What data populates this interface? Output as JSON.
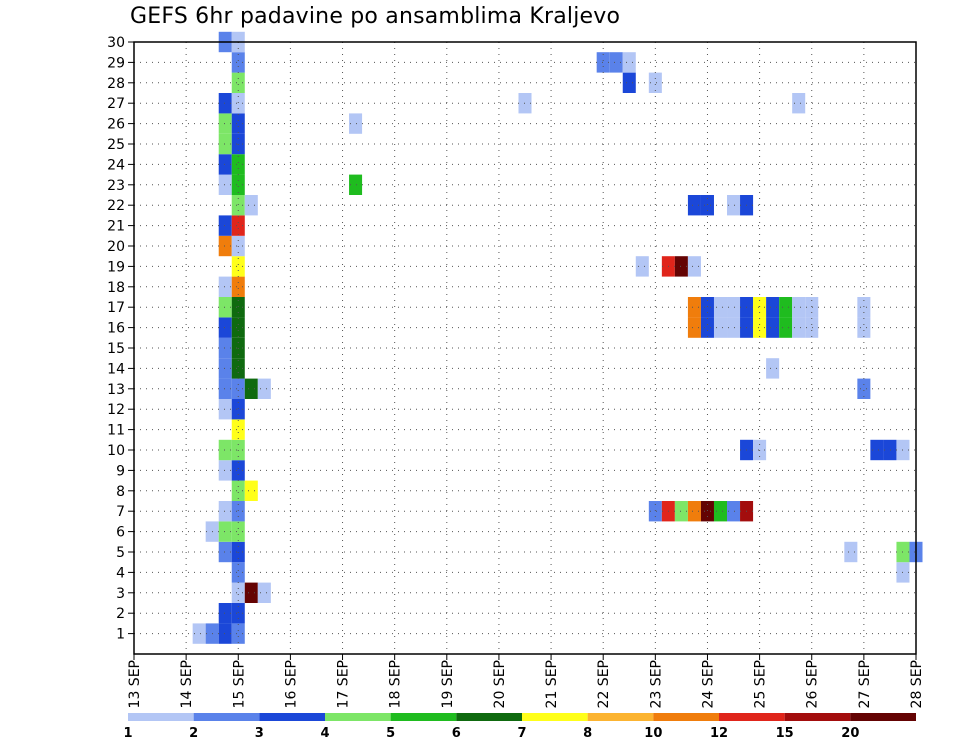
{
  "chart_data": {
    "type": "heatmap",
    "title": "GEFS 6hr padavine po ansamblima Kraljevo",
    "xlabel": "",
    "ylabel": "",
    "x_ticks": [
      "13 SEP",
      "14 SEP",
      "15 SEP",
      "16 SEP",
      "17 SEP",
      "18 SEP",
      "19 SEP",
      "20 SEP",
      "21 SEP",
      "22 SEP",
      "23 SEP",
      "24 SEP",
      "25 SEP",
      "26 SEP",
      "27 SEP",
      "28 SEP"
    ],
    "x_range_steps": [
      0,
      60
    ],
    "steps_per_day": 4,
    "y_ticks": [
      1,
      2,
      3,
      4,
      5,
      6,
      7,
      8,
      9,
      10,
      11,
      12,
      13,
      14,
      15,
      16,
      17,
      18,
      19,
      20,
      21,
      22,
      23,
      24,
      25,
      26,
      27,
      28,
      29,
      30
    ],
    "y_range": [
      0,
      30
    ],
    "grid": true,
    "colorbar": {
      "labels": [
        "1",
        "2",
        "3",
        "4",
        "5",
        "6",
        "7",
        "8",
        "10",
        "12",
        "15",
        "20"
      ],
      "colors": [
        "#b3c6f5",
        "#5a82ea",
        "#1b47d8",
        "#7de667",
        "#1fbc1f",
        "#0f6a0f",
        "#ffff1a",
        "#fcb431",
        "#f07d0c",
        "#e0251b",
        "#a30d0d",
        "#640303"
      ]
    },
    "cells": [
      {
        "member": 1,
        "step": 5,
        "value": 1
      },
      {
        "member": 1,
        "step": 6,
        "value": 2
      },
      {
        "member": 1,
        "step": 7,
        "value": 3
      },
      {
        "member": 1,
        "step": 8,
        "value": 2
      },
      {
        "member": 2,
        "step": 7,
        "value": 3
      },
      {
        "member": 2,
        "step": 8,
        "value": 3
      },
      {
        "member": 3,
        "step": 8,
        "value": 1
      },
      {
        "member": 3,
        "step": 9,
        "value": 20
      },
      {
        "member": 3,
        "step": 10,
        "value": 1
      },
      {
        "member": 4,
        "step": 8,
        "value": 2
      },
      {
        "member": 4,
        "step": 59,
        "value": 1
      },
      {
        "member": 5,
        "step": 7,
        "value": 2
      },
      {
        "member": 5,
        "step": 8,
        "value": 3
      },
      {
        "member": 5,
        "step": 55,
        "value": 1
      },
      {
        "member": 5,
        "step": 59,
        "value": 4
      },
      {
        "member": 5,
        "step": 60,
        "value": 2
      },
      {
        "member": 6,
        "step": 6,
        "value": 1
      },
      {
        "member": 6,
        "step": 7,
        "value": 4
      },
      {
        "member": 6,
        "step": 8,
        "value": 4
      },
      {
        "member": 7,
        "step": 7,
        "value": 1
      },
      {
        "member": 7,
        "step": 8,
        "value": 2
      },
      {
        "member": 7,
        "step": 40,
        "value": 2
      },
      {
        "member": 7,
        "step": 41,
        "value": 12
      },
      {
        "member": 7,
        "step": 42,
        "value": 4
      },
      {
        "member": 7,
        "step": 43,
        "value": 10
      },
      {
        "member": 7,
        "step": 44,
        "value": 20
      },
      {
        "member": 7,
        "step": 45,
        "value": 5
      },
      {
        "member": 7,
        "step": 46,
        "value": 2
      },
      {
        "member": 7,
        "step": 47,
        "value": 15
      },
      {
        "member": 8,
        "step": 8,
        "value": 4
      },
      {
        "member": 8,
        "step": 9,
        "value": 7
      },
      {
        "member": 9,
        "step": 7,
        "value": 1
      },
      {
        "member": 9,
        "step": 8,
        "value": 3
      },
      {
        "member": 10,
        "step": 7,
        "value": 4
      },
      {
        "member": 10,
        "step": 8,
        "value": 4
      },
      {
        "member": 10,
        "step": 47,
        "value": 3
      },
      {
        "member": 10,
        "step": 48,
        "value": 1
      },
      {
        "member": 10,
        "step": 57,
        "value": 3
      },
      {
        "member": 10,
        "step": 58,
        "value": 3
      },
      {
        "member": 10,
        "step": 59,
        "value": 1
      },
      {
        "member": 11,
        "step": 8,
        "value": 7
      },
      {
        "member": 12,
        "step": 7,
        "value": 1
      },
      {
        "member": 12,
        "step": 8,
        "value": 3
      },
      {
        "member": 13,
        "step": 7,
        "value": 2
      },
      {
        "member": 13,
        "step": 8,
        "value": 2
      },
      {
        "member": 13,
        "step": 9,
        "value": 6
      },
      {
        "member": 13,
        "step": 10,
        "value": 1
      },
      {
        "member": 13,
        "step": 56,
        "value": 2
      },
      {
        "member": 14,
        "step": 7,
        "value": 2
      },
      {
        "member": 14,
        "step": 8,
        "value": 6
      },
      {
        "member": 14,
        "step": 49,
        "value": 1
      },
      {
        "member": 15,
        "step": 7,
        "value": 2
      },
      {
        "member": 15,
        "step": 8,
        "value": 6
      },
      {
        "member": 16,
        "step": 7,
        "value": 3
      },
      {
        "member": 16,
        "step": 8,
        "value": 6
      },
      {
        "member": 16,
        "step": 43,
        "value": 10
      },
      {
        "member": 16,
        "step": 44,
        "value": 3
      },
      {
        "member": 16,
        "step": 45,
        "value": 1
      },
      {
        "member": 16,
        "step": 46,
        "value": 1
      },
      {
        "member": 16,
        "step": 47,
        "value": 3
      },
      {
        "member": 16,
        "step": 48,
        "value": 7
      },
      {
        "member": 16,
        "step": 49,
        "value": 3
      },
      {
        "member": 16,
        "step": 50,
        "value": 5
      },
      {
        "member": 16,
        "step": 51,
        "value": 1
      },
      {
        "member": 16,
        "step": 52,
        "value": 1
      },
      {
        "member": 16,
        "step": 56,
        "value": 1
      },
      {
        "member": 17,
        "step": 7,
        "value": 4
      },
      {
        "member": 17,
        "step": 8,
        "value": 6
      },
      {
        "member": 17,
        "step": 43,
        "value": 10
      },
      {
        "member": 17,
        "step": 44,
        "value": 3
      },
      {
        "member": 17,
        "step": 45,
        "value": 1
      },
      {
        "member": 17,
        "step": 46,
        "value": 1
      },
      {
        "member": 17,
        "step": 47,
        "value": 3
      },
      {
        "member": 17,
        "step": 48,
        "value": 7
      },
      {
        "member": 17,
        "step": 49,
        "value": 3
      },
      {
        "member": 17,
        "step": 50,
        "value": 5
      },
      {
        "member": 17,
        "step": 51,
        "value": 1
      },
      {
        "member": 17,
        "step": 52,
        "value": 1
      },
      {
        "member": 17,
        "step": 56,
        "value": 1
      },
      {
        "member": 18,
        "step": 7,
        "value": 1
      },
      {
        "member": 18,
        "step": 8,
        "value": 10
      },
      {
        "member": 19,
        "step": 8,
        "value": 7
      },
      {
        "member": 19,
        "step": 39,
        "value": 1
      },
      {
        "member": 19,
        "step": 41,
        "value": 12
      },
      {
        "member": 19,
        "step": 42,
        "value": 20
      },
      {
        "member": 19,
        "step": 43,
        "value": 1
      },
      {
        "member": 20,
        "step": 7,
        "value": 10
      },
      {
        "member": 20,
        "step": 8,
        "value": 1
      },
      {
        "member": 21,
        "step": 7,
        "value": 3
      },
      {
        "member": 21,
        "step": 8,
        "value": 12
      },
      {
        "member": 22,
        "step": 8,
        "value": 4
      },
      {
        "member": 22,
        "step": 9,
        "value": 1
      },
      {
        "member": 22,
        "step": 43,
        "value": 3
      },
      {
        "member": 22,
        "step": 44,
        "value": 3
      },
      {
        "member": 22,
        "step": 46,
        "value": 1
      },
      {
        "member": 22,
        "step": 47,
        "value": 3
      },
      {
        "member": 23,
        "step": 7,
        "value": 1
      },
      {
        "member": 23,
        "step": 8,
        "value": 5
      },
      {
        "member": 23,
        "step": 17,
        "value": 5
      },
      {
        "member": 24,
        "step": 7,
        "value": 3
      },
      {
        "member": 24,
        "step": 8,
        "value": 5
      },
      {
        "member": 25,
        "step": 7,
        "value": 4
      },
      {
        "member": 25,
        "step": 8,
        "value": 3
      },
      {
        "member": 26,
        "step": 7,
        "value": 4
      },
      {
        "member": 26,
        "step": 8,
        "value": 3
      },
      {
        "member": 26,
        "step": 17,
        "value": 1
      },
      {
        "member": 27,
        "step": 7,
        "value": 3
      },
      {
        "member": 27,
        "step": 8,
        "value": 1
      },
      {
        "member": 27,
        "step": 30,
        "value": 1
      },
      {
        "member": 27,
        "step": 51,
        "value": 1
      },
      {
        "member": 28,
        "step": 8,
        "value": 4
      },
      {
        "member": 28,
        "step": 38,
        "value": 3
      },
      {
        "member": 28,
        "step": 40,
        "value": 1
      },
      {
        "member": 29,
        "step": 8,
        "value": 2
      },
      {
        "member": 29,
        "step": 36,
        "value": 2
      },
      {
        "member": 29,
        "step": 37,
        "value": 2
      },
      {
        "member": 29,
        "step": 38,
        "value": 1
      },
      {
        "member": 30,
        "step": 7,
        "value": 2
      },
      {
        "member": 30,
        "step": 8,
        "value": 1
      }
    ]
  }
}
